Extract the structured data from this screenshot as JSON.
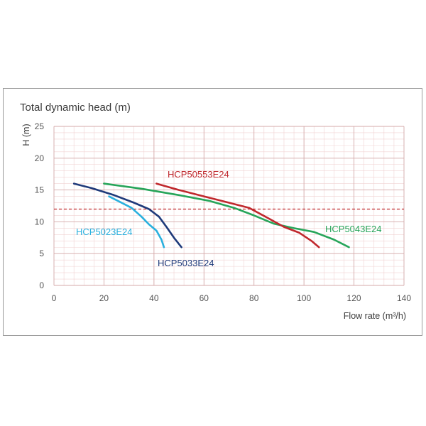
{
  "chart_data": {
    "type": "line",
    "title": "Total dynamic head (m)",
    "ylabel": "H (m)",
    "xlabel": "Flow rate (m³/h)",
    "xlim": [
      0,
      140
    ],
    "ylim": [
      0,
      25
    ],
    "xticks": [
      "0",
      "20",
      "40",
      "60",
      "80",
      "100",
      "120",
      "140"
    ],
    "yticks": [
      "0",
      "5",
      "10",
      "15",
      "20",
      "25"
    ],
    "grid": true,
    "reference_line": {
      "y": 12,
      "color": "#c0282d",
      "style": "dashed"
    },
    "series": [
      {
        "name": "HCP5023E24",
        "color": "#2ab0de",
        "x": [
          22,
          26,
          31,
          35,
          38,
          41,
          43,
          44
        ],
        "y": [
          14,
          13.2,
          12.2,
          10.8,
          9.6,
          8.6,
          7.2,
          6
        ]
      },
      {
        "name": "HCP5033E24",
        "color": "#1f3a7a",
        "x": [
          8,
          15,
          24,
          32,
          38,
          42,
          45,
          48,
          51
        ],
        "y": [
          16,
          15.3,
          14.2,
          13,
          12,
          10.8,
          9.2,
          7.5,
          6
        ]
      },
      {
        "name": "HCP5043E24",
        "color": "#27a55a",
        "x": [
          20,
          35,
          50,
          62,
          72,
          80,
          88,
          96,
          104,
          112,
          118
        ],
        "y": [
          16,
          15.2,
          14.2,
          13.3,
          12.2,
          11,
          9.7,
          9,
          8.4,
          7.2,
          6
        ]
      },
      {
        "name": "HCP50553E24",
        "color": "#c0282d",
        "x": [
          41,
          50,
          60,
          70,
          78,
          86,
          92,
          98,
          103,
          106
        ],
        "y": [
          16,
          15,
          14,
          13,
          12.2,
          10.5,
          9.2,
          8.3,
          7,
          6
        ]
      }
    ]
  }
}
